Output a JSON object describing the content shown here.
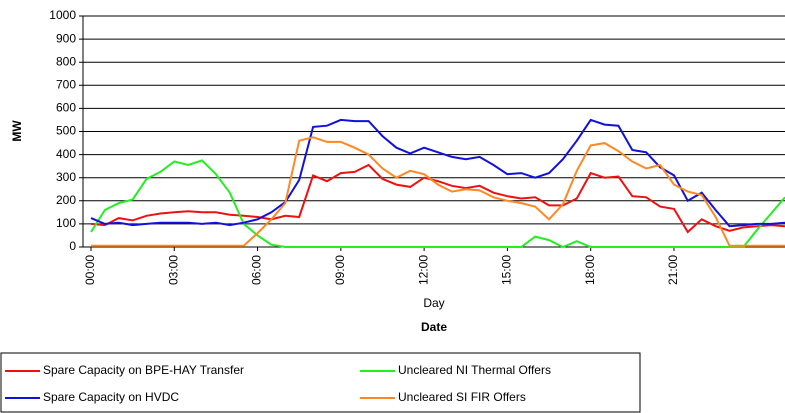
{
  "chart_data": {
    "type": "line",
    "y_label": "MW",
    "x_label": "Day",
    "x_title": "Date",
    "categories": [
      "00:00",
      null,
      null,
      null,
      null,
      null,
      "03:00",
      null,
      null,
      null,
      null,
      null,
      "06:00",
      null,
      null,
      null,
      null,
      null,
      "09:00",
      null,
      null,
      null,
      null,
      null,
      "12:00",
      null,
      null,
      null,
      null,
      null,
      "15:00",
      null,
      null,
      null,
      null,
      null,
      "18:00",
      null,
      null,
      null,
      null,
      null,
      "21:00",
      null,
      null,
      null,
      null,
      null,
      null,
      null,
      null
    ],
    "series": [
      {
        "name": "Spare Capacity on BPE-HAY Transfer",
        "color": "#ee1111",
        "values": [
          100,
          95,
          125,
          115,
          135,
          145,
          150,
          155,
          150,
          150,
          140,
          135,
          130,
          120,
          135,
          130,
          310,
          285,
          320,
          325,
          355,
          295,
          270,
          260,
          300,
          285,
          265,
          255,
          265,
          235,
          220,
          210,
          215,
          180,
          180,
          210,
          320,
          300,
          305,
          220,
          215,
          175,
          165,
          65,
          120,
          90,
          70,
          85,
          90,
          95,
          90
        ]
      },
      {
        "name": "Uncleared NI Thermal Offers",
        "color": "#22ee22",
        "values": [
          65,
          160,
          190,
          205,
          295,
          325,
          370,
          355,
          375,
          315,
          235,
          100,
          50,
          10,
          0,
          0,
          0,
          0,
          0,
          0,
          0,
          0,
          0,
          0,
          0,
          0,
          0,
          0,
          0,
          0,
          0,
          0,
          45,
          30,
          0,
          25,
          0,
          0,
          0,
          0,
          0,
          0,
          0,
          0,
          0,
          0,
          0,
          0,
          75,
          145,
          215
        ]
      },
      {
        "name": "Spare Capacity on HVDC",
        "color": "#1111dd",
        "values": [
          125,
          100,
          105,
          95,
          100,
          105,
          105,
          105,
          100,
          105,
          95,
          105,
          120,
          150,
          195,
          290,
          520,
          525,
          550,
          545,
          545,
          480,
          430,
          405,
          430,
          410,
          390,
          380,
          390,
          355,
          315,
          320,
          300,
          320,
          380,
          460,
          550,
          530,
          525,
          420,
          410,
          345,
          310,
          200,
          235,
          160,
          90,
          95,
          100,
          100,
          105
        ]
      },
      {
        "name": "Uncleared SI FIR Offers",
        "color": "#ff8822",
        "values": [
          5,
          5,
          5,
          5,
          5,
          5,
          5,
          5,
          5,
          5,
          5,
          5,
          60,
          120,
          190,
          460,
          475,
          455,
          455,
          430,
          400,
          340,
          300,
          330,
          315,
          270,
          240,
          250,
          245,
          215,
          200,
          190,
          175,
          120,
          185,
          330,
          440,
          450,
          415,
          370,
          340,
          355,
          270,
          240,
          225,
          130,
          5,
          5,
          5,
          5,
          5
        ]
      }
    ],
    "ylim": [
      0,
      1000
    ],
    "yticks": [
      0,
      100,
      200,
      300,
      400,
      500,
      600,
      700,
      800,
      900,
      1000
    ],
    "grid": true
  }
}
